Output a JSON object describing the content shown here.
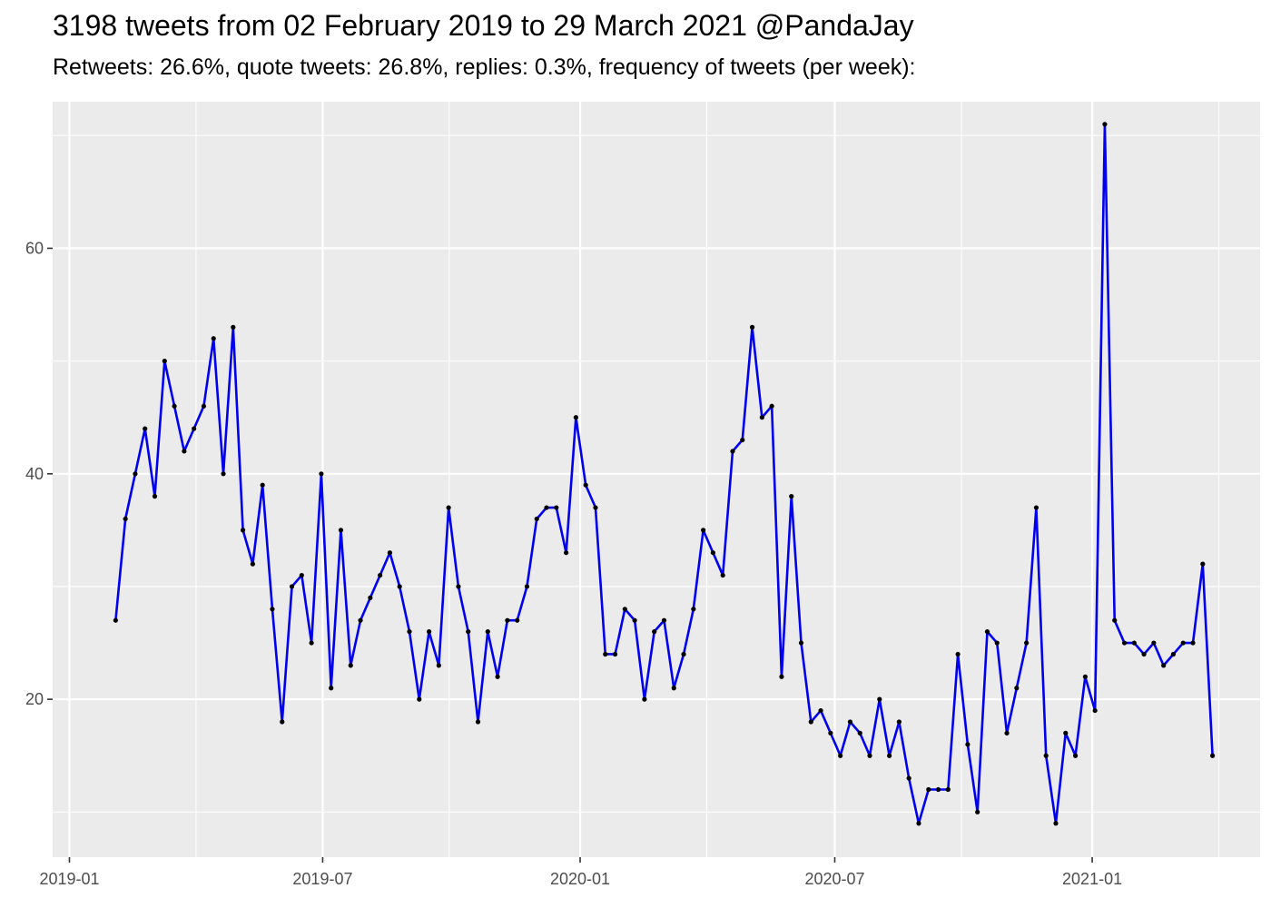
{
  "chart_data": {
    "type": "line",
    "title": "3198 tweets from 02 February 2019 to 29 March 2021 @PandaJay",
    "subtitle": "Retweets: 26.6%, quote tweets: 26.8%, replies: 0.3%, frequency of tweets (per week):",
    "xlabel": "",
    "ylabel": "",
    "x_ticks": [
      "2019-01",
      "2019-07",
      "2020-01",
      "2020-07",
      "2021-01"
    ],
    "y_ticks": [
      20,
      40,
      60
    ],
    "xlim": [
      "2018-12-20",
      "2021-05-01"
    ],
    "ylim": [
      6,
      73
    ],
    "grid": true,
    "legend": "none",
    "colors": {
      "line": "#0000ee",
      "point": "#000000",
      "panel": "#ebebeb",
      "grid": "#ffffff"
    },
    "series": [
      {
        "x": [
          "2019-02-03",
          "2019-02-10",
          "2019-02-17",
          "2019-02-24",
          "2019-03-03",
          "2019-03-10",
          "2019-03-17",
          "2019-03-24",
          "2019-03-31",
          "2019-04-07",
          "2019-04-14",
          "2019-04-21",
          "2019-04-28",
          "2019-05-05",
          "2019-05-12",
          "2019-05-19",
          "2019-05-26",
          "2019-06-02",
          "2019-06-09",
          "2019-06-16",
          "2019-06-23",
          "2019-06-30",
          "2019-07-07",
          "2019-07-14",
          "2019-07-21",
          "2019-07-28",
          "2019-08-04",
          "2019-08-11",
          "2019-08-18",
          "2019-08-25",
          "2019-09-01",
          "2019-09-08",
          "2019-09-15",
          "2019-09-22",
          "2019-09-29",
          "2019-10-06",
          "2019-10-13",
          "2019-10-20",
          "2019-10-27",
          "2019-11-03",
          "2019-11-10",
          "2019-11-17",
          "2019-11-24",
          "2019-12-01",
          "2019-12-08",
          "2019-12-15",
          "2019-12-22",
          "2019-12-29",
          "2020-01-05",
          "2020-01-12",
          "2020-01-19",
          "2020-01-26",
          "2020-02-02",
          "2020-02-09",
          "2020-02-16",
          "2020-02-23",
          "2020-03-01",
          "2020-03-08",
          "2020-03-15",
          "2020-03-22",
          "2020-03-29",
          "2020-04-05",
          "2020-04-12",
          "2020-04-19",
          "2020-04-26",
          "2020-05-03",
          "2020-05-10",
          "2020-05-17",
          "2020-05-24",
          "2020-05-31",
          "2020-06-07",
          "2020-06-14",
          "2020-06-21",
          "2020-06-28",
          "2020-07-05",
          "2020-07-12",
          "2020-07-19",
          "2020-07-26",
          "2020-08-02",
          "2020-08-09",
          "2020-08-16",
          "2020-08-23",
          "2020-08-30",
          "2020-09-06",
          "2020-09-13",
          "2020-09-20",
          "2020-09-27",
          "2020-10-04",
          "2020-10-11",
          "2020-10-18",
          "2020-10-25",
          "2020-11-01",
          "2020-11-08",
          "2020-11-15",
          "2020-11-22",
          "2020-11-29",
          "2020-12-06",
          "2020-12-13",
          "2020-12-20",
          "2020-12-27",
          "2021-01-03",
          "2021-01-10",
          "2021-01-17",
          "2021-01-24",
          "2021-01-31",
          "2021-02-07",
          "2021-02-14",
          "2021-02-21",
          "2021-02-28",
          "2021-03-07",
          "2021-03-14",
          "2021-03-21",
          "2021-03-28"
        ],
        "y": [
          27,
          36,
          40,
          44,
          38,
          50,
          46,
          42,
          44,
          46,
          52,
          40,
          53,
          35,
          32,
          39,
          28,
          18,
          30,
          31,
          25,
          40,
          21,
          35,
          23,
          27,
          29,
          31,
          33,
          30,
          26,
          20,
          26,
          23,
          37,
          30,
          26,
          18,
          26,
          22,
          27,
          27,
          30,
          36,
          37,
          37,
          33,
          45,
          39,
          37,
          24,
          24,
          28,
          27,
          20,
          26,
          27,
          21,
          24,
          28,
          35,
          33,
          31,
          42,
          43,
          53,
          45,
          46,
          22,
          38,
          25,
          18,
          19,
          17,
          15,
          18,
          17,
          15,
          20,
          15,
          18,
          13,
          9,
          12,
          12,
          12,
          24,
          16,
          10,
          26,
          25,
          17,
          21,
          25,
          37,
          15,
          9,
          17,
          15,
          22,
          19,
          71,
          27,
          25,
          25,
          24,
          25,
          23,
          24,
          25,
          25,
          32,
          15
        ]
      }
    ]
  }
}
